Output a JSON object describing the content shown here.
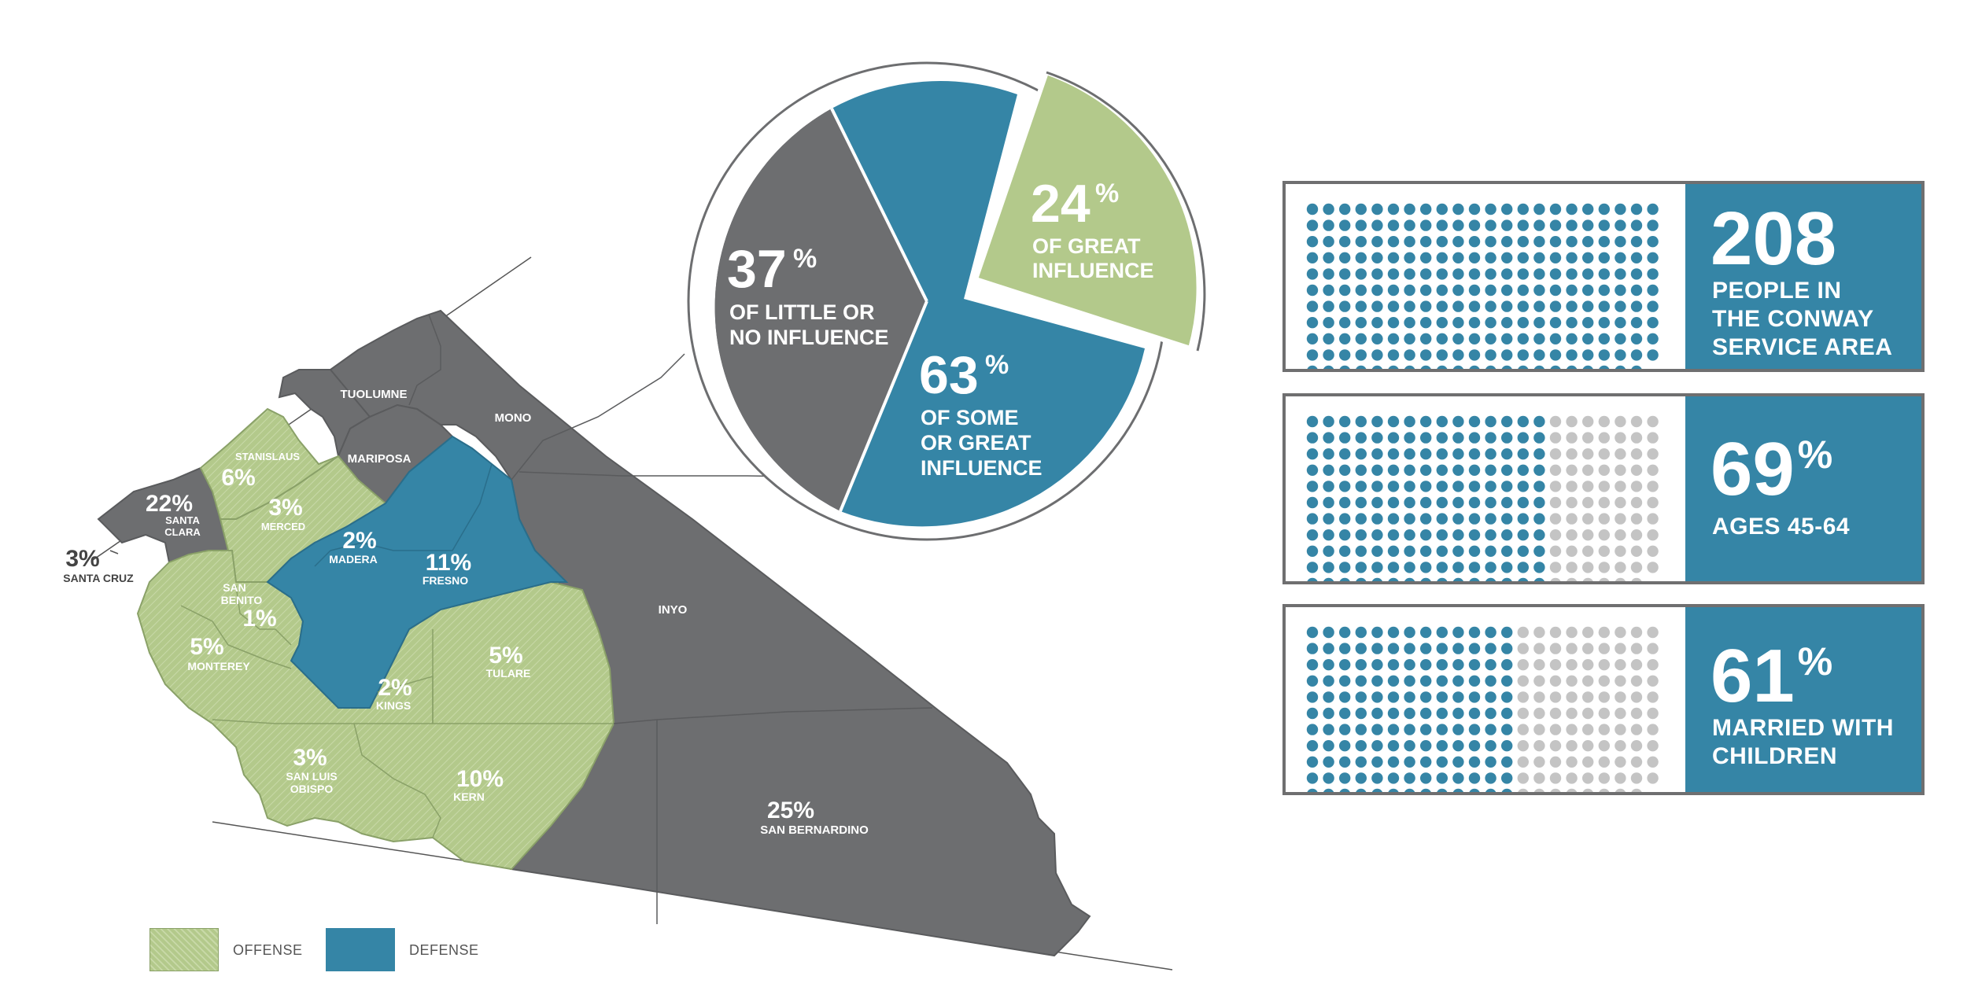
{
  "colors": {
    "offense": "#b3c98b",
    "defense": "#3585a6",
    "dark": "#6d6e70",
    "dot_grey": "#c4c4c4"
  },
  "pie": {
    "segments": [
      {
        "key": "little",
        "pct": "37",
        "line1": "OF LITTLE OR",
        "line2": "NO INFLUENCE",
        "line3": ""
      },
      {
        "key": "some",
        "pct": "63",
        "line1": "OF SOME",
        "line2": "OR GREAT",
        "line3": "INFLUENCE"
      },
      {
        "key": "great",
        "pct": "24",
        "line1": "OF GREAT",
        "line2": "INFLUENCE",
        "line3": ""
      }
    ],
    "percent_sign": "%"
  },
  "map": {
    "counties": [
      {
        "id": "santa-clara",
        "name": "SANTA CLARA",
        "pct": "22%"
      },
      {
        "id": "santa-cruz",
        "name": "SANTA CRUZ",
        "pct": "3%"
      },
      {
        "id": "stanislaus",
        "name": "STANISLAUS",
        "pct": "6%"
      },
      {
        "id": "merced",
        "name": "MERCED",
        "pct": "3%"
      },
      {
        "id": "san-benito",
        "name": "SAN BENITO",
        "pct": "1%"
      },
      {
        "id": "monterey",
        "name": "MONTEREY",
        "pct": "5%"
      },
      {
        "id": "madera",
        "name": "MADERA",
        "pct": "2%"
      },
      {
        "id": "fresno",
        "name": "FRESNO",
        "pct": "11%"
      },
      {
        "id": "kings",
        "name": "KINGS",
        "pct": "2%"
      },
      {
        "id": "tulare",
        "name": "TULARE",
        "pct": "5%"
      },
      {
        "id": "san-luis-obispo",
        "name": "SAN LUIS OBISPO",
        "pct": "3%"
      },
      {
        "id": "kern",
        "name": "KERN",
        "pct": "10%"
      },
      {
        "id": "san-bernardino",
        "name": "SAN BERNARDINO",
        "pct": "25%"
      },
      {
        "id": "tuolumne",
        "name": "TUOLUMNE",
        "pct": ""
      },
      {
        "id": "mariposa",
        "name": "MARIPOSA",
        "pct": ""
      },
      {
        "id": "mono",
        "name": "MONO",
        "pct": ""
      },
      {
        "id": "inyo",
        "name": "INYO",
        "pct": ""
      }
    ],
    "san_benito_lines": [
      "SAN",
      "BENITO"
    ],
    "santa_clara_lines": [
      "SANTA",
      "CLARA"
    ],
    "slo_lines": [
      "SAN LUIS",
      "OBISPO"
    ]
  },
  "legend": {
    "offense": "OFFENSE",
    "defense": "DEFENSE"
  },
  "stats": [
    {
      "value": "208",
      "suffix": "",
      "line1": "PEOPLE IN",
      "line2": "THE CONWAY",
      "line3": "SERVICE AREA",
      "filled_fraction": 1.0
    },
    {
      "value": "69",
      "suffix": "%",
      "line1": "AGES 45-64",
      "line2": "",
      "line3": "",
      "filled_fraction": 0.69
    },
    {
      "value": "61",
      "suffix": "%",
      "line1": "MARRIED WITH",
      "line2": "CHILDREN",
      "line3": "",
      "filled_fraction": 0.61
    }
  ]
}
